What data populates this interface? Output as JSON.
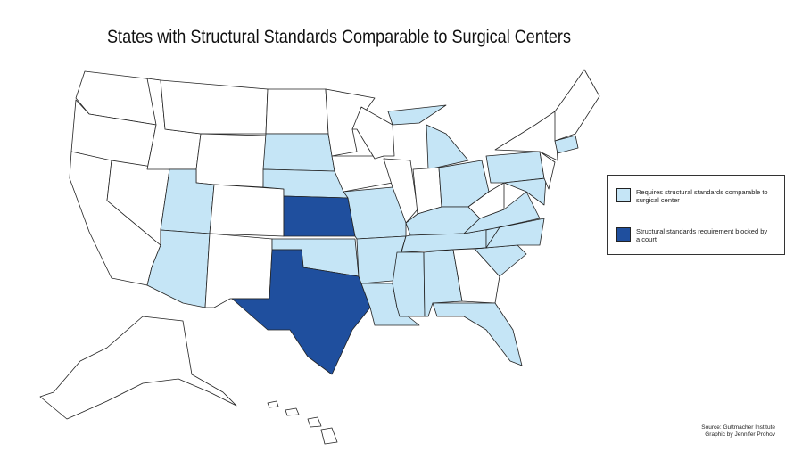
{
  "title": "States with Structural Standards Comparable to Surgical Centers",
  "legend": {
    "items": [
      {
        "label": "Requires structural standards comparable to surgical center",
        "color": "#c5e5f6"
      },
      {
        "label": "Structural standards requirement blocked by a court",
        "color": "#1f4f9e"
      }
    ]
  },
  "source": {
    "lines": [
      "Source: Guttmacher Institute",
      "Graphic by Jennifer Prohov"
    ]
  }
}
